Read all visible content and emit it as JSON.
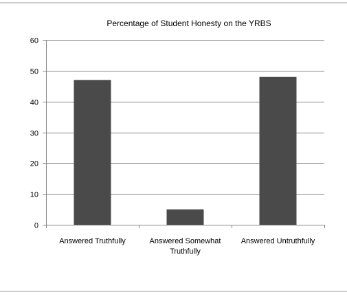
{
  "chart_data": {
    "type": "bar",
    "title": "Percentage of Student Honesty on the YRBS",
    "categories": [
      "Answered Truthfully",
      "Answered Somewhat Truthfully",
      "Answered Untruthfully"
    ],
    "category_lines": [
      [
        "Answered Truthfully"
      ],
      [
        "Answered Somewhat",
        "Truthfully"
      ],
      [
        "Answered Untruthfully"
      ]
    ],
    "values": [
      47,
      5,
      48
    ],
    "xlabel": "",
    "ylabel": "",
    "ylim": [
      0,
      60
    ],
    "yticks": [
      0,
      10,
      20,
      30,
      40,
      50,
      60
    ],
    "grid": true,
    "legend": "none",
    "bar_color": "#4a4a4a",
    "gridline_color": "#868686"
  }
}
